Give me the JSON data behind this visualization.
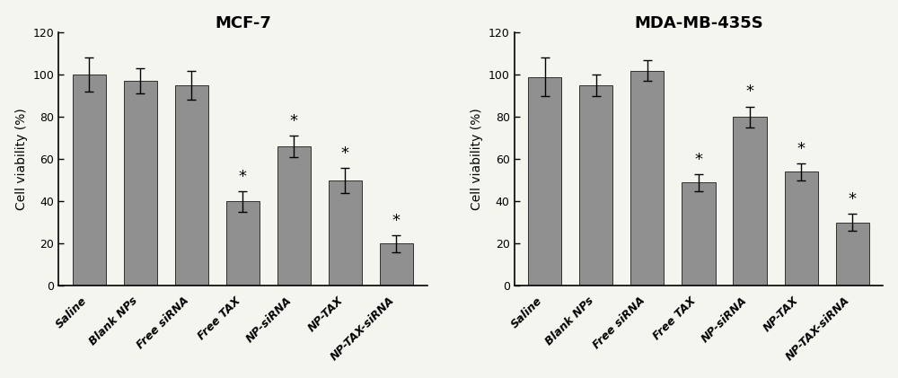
{
  "left_title": "MCF-7",
  "right_title": "MDA-MB-435S",
  "ylabel": "Cell viability (%)",
  "categories": [
    "Saline",
    "Blank NPs",
    "Free siRNA",
    "Free TAX",
    "NP-siRNA",
    "NP-TAX",
    "NP-TAX-siRNA"
  ],
  "mcf7_values": [
    100,
    97,
    95,
    40,
    66,
    50,
    20
  ],
  "mcf7_errors": [
    8,
    6,
    7,
    5,
    5,
    6,
    4
  ],
  "mda_values": [
    99,
    95,
    102,
    49,
    80,
    54,
    30
  ],
  "mda_errors": [
    9,
    5,
    5,
    4,
    5,
    4,
    4
  ],
  "significant_mcf7": [
    false,
    false,
    false,
    true,
    true,
    true,
    true
  ],
  "significant_mda": [
    false,
    false,
    false,
    true,
    true,
    true,
    true
  ],
  "bar_color": "#909090",
  "bar_edge_color": "#303030",
  "ylim": [
    0,
    120
  ],
  "yticks": [
    0,
    20,
    40,
    60,
    80,
    100,
    120
  ],
  "background_color": "#f5f5f0",
  "title_fontsize": 13,
  "ylabel_fontsize": 10,
  "tick_fontsize": 9,
  "xtick_fontsize": 9,
  "star_fontsize": 13
}
